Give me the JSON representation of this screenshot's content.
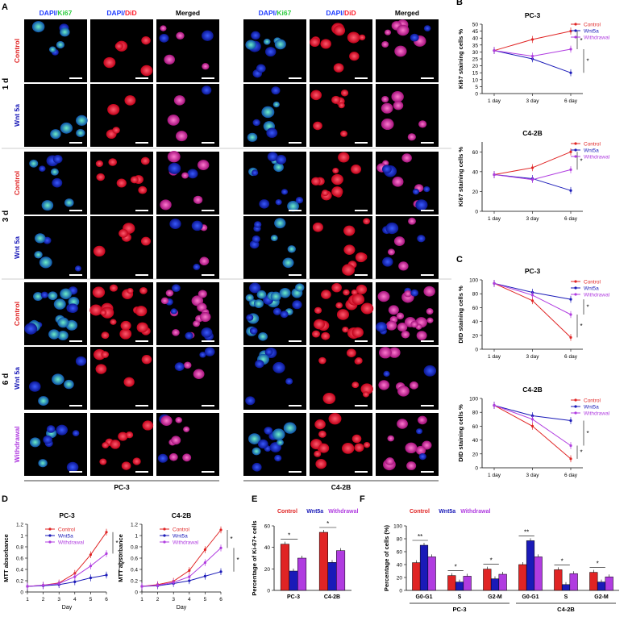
{
  "panel_letters": [
    "A",
    "B",
    "C",
    "D",
    "E",
    "F"
  ],
  "micro": {
    "col_headers": {
      "dapi": "DAPI/",
      "ki67": "Ki67",
      "did": "DiD",
      "merged": "Merged"
    },
    "row_labels": [
      "Control",
      "Wnt 5a",
      "Control",
      "Wnt 5a",
      "Control",
      "Wnt 5a",
      "Withdrawal"
    ],
    "time_labels": [
      "1 d",
      "3 d",
      "6 d"
    ],
    "cell_lines": [
      "PC-3",
      "C4-2B"
    ]
  },
  "colors": {
    "control": "#e02424",
    "wnt5a": "#1a1ab8",
    "withdrawal": "#b03ce0",
    "dapi": "#1f3cff",
    "ki67": "#2ecc40",
    "did": "#ff1a2a"
  },
  "chart_data": [
    {
      "id": "B-PC3",
      "type": "line",
      "title": "PC-3",
      "ylabel": "Ki67 staining cells %",
      "categories": [
        "1 day",
        "3 day",
        "6 day"
      ],
      "ylim": [
        0,
        50
      ],
      "yticks": [
        0,
        5,
        10,
        15,
        20,
        25,
        30,
        35,
        40,
        45,
        50
      ],
      "series": [
        {
          "name": "Control",
          "values": [
            31,
            39,
            45
          ]
        },
        {
          "name": "Wnt5a",
          "values": [
            31,
            25,
            15
          ]
        },
        {
          "name": "Withdrawal",
          "values": [
            31,
            27,
            32
          ]
        }
      ],
      "significance": [
        "*",
        "*"
      ]
    },
    {
      "id": "B-C42B",
      "type": "line",
      "title": "C4-2B",
      "ylabel": "Ki67 staining cells %",
      "categories": [
        "1 day",
        "3 day",
        "6 day"
      ],
      "ylim": [
        0,
        70
      ],
      "yticks": [
        0,
        20,
        40,
        60
      ],
      "series": [
        {
          "name": "Control",
          "values": [
            37,
            44,
            60
          ]
        },
        {
          "name": "Wnt5a",
          "values": [
            37,
            33,
            21
          ]
        },
        {
          "name": "Withdrawal",
          "values": [
            37,
            32,
            42
          ]
        }
      ],
      "significance": [
        "*"
      ]
    },
    {
      "id": "C-PC3",
      "type": "line",
      "title": "PC-3",
      "ylabel": "DID staining cells %",
      "categories": [
        "1 day",
        "3 day",
        "6 day"
      ],
      "ylim": [
        0,
        100
      ],
      "yticks": [
        0,
        20,
        40,
        60,
        80,
        100
      ],
      "series": [
        {
          "name": "Control",
          "values": [
            95,
            70,
            17
          ]
        },
        {
          "name": "Wnt5a",
          "values": [
            95,
            82,
            72
          ]
        },
        {
          "name": "Withdrawal",
          "values": [
            95,
            78,
            50
          ]
        }
      ],
      "significance": [
        "*",
        "*"
      ]
    },
    {
      "id": "C-C42B",
      "type": "line",
      "title": "C4-2B",
      "ylabel": "DID staining cells %",
      "categories": [
        "1 day",
        "3 day",
        "6 day"
      ],
      "ylim": [
        0,
        100
      ],
      "yticks": [
        0,
        20,
        40,
        60,
        80,
        100
      ],
      "series": [
        {
          "name": "Control",
          "values": [
            90,
            60,
            13
          ]
        },
        {
          "name": "Wnt5a",
          "values": [
            90,
            75,
            68
          ]
        },
        {
          "name": "Withdrawal",
          "values": [
            90,
            70,
            32
          ]
        }
      ],
      "significance": [
        "*",
        "*"
      ]
    },
    {
      "id": "D-PC3",
      "type": "line",
      "title": "PC-3",
      "ylabel": "MTT absorbance",
      "xlabel": "Day",
      "x": [
        1,
        2,
        3,
        4,
        5,
        6
      ],
      "ylim": [
        0,
        1.2
      ],
      "yticks": [
        0,
        0.2,
        0.4,
        0.6,
        0.8,
        1.0,
        1.2
      ],
      "series": [
        {
          "name": "Control",
          "values": [
            0.1,
            0.12,
            0.16,
            0.33,
            0.66,
            1.06
          ]
        },
        {
          "name": "Wnt5a",
          "values": [
            0.1,
            0.11,
            0.13,
            0.18,
            0.25,
            0.3
          ]
        },
        {
          "name": "Withdrawal",
          "values": [
            0.1,
            0.12,
            0.15,
            0.27,
            0.46,
            0.68
          ]
        }
      ],
      "significance": [
        "*",
        "*"
      ]
    },
    {
      "id": "D-C42B",
      "type": "line",
      "title": "C4-2B",
      "ylabel": "MTT absorbance",
      "xlabel": "Day",
      "x": [
        1,
        2,
        3,
        4,
        5,
        6
      ],
      "ylim": [
        0,
        1.2
      ],
      "yticks": [
        0,
        0.2,
        0.4,
        0.6,
        0.8,
        1.0,
        1.2
      ],
      "series": [
        {
          "name": "Control",
          "values": [
            0.1,
            0.13,
            0.19,
            0.38,
            0.75,
            1.1
          ]
        },
        {
          "name": "Wnt5a",
          "values": [
            0.1,
            0.11,
            0.15,
            0.2,
            0.28,
            0.36
          ]
        },
        {
          "name": "Withdrawal",
          "values": [
            0.1,
            0.12,
            0.17,
            0.27,
            0.52,
            0.78
          ]
        }
      ],
      "significance": [
        "*",
        "*"
      ]
    },
    {
      "id": "E",
      "type": "bar",
      "ylabel": "Percentage of Ki-67+ cells",
      "categories": [
        "PC-3",
        "C4-2B"
      ],
      "ylim": [
        0,
        60
      ],
      "yticks": [
        0,
        20,
        40,
        60
      ],
      "series": [
        {
          "name": "Control",
          "values": [
            43,
            54
          ]
        },
        {
          "name": "Wnt5a",
          "values": [
            18,
            26
          ]
        },
        {
          "name": "Withdrawal",
          "values": [
            30,
            37
          ]
        }
      ],
      "significance": [
        "*"
      ]
    },
    {
      "id": "F",
      "type": "bar",
      "ylabel": "Percentage of cells (%)",
      "groups": [
        "PC-3",
        "C4-2B"
      ],
      "categories": [
        "G0-G1",
        "S",
        "G2-M",
        "G0-G1",
        "S",
        "G2-M"
      ],
      "ylim": [
        0,
        100
      ],
      "yticks": [
        0,
        20,
        40,
        60,
        80,
        100
      ],
      "series": [
        {
          "name": "Control",
          "values": [
            43,
            23,
            33,
            40,
            32,
            28
          ]
        },
        {
          "name": "Wnt5a",
          "values": [
            70,
            13,
            18,
            77,
            9,
            13
          ]
        },
        {
          "name": "Withdrawal",
          "values": [
            52,
            22,
            25,
            52,
            26,
            21
          ]
        }
      ],
      "significance": [
        "*",
        "**"
      ]
    }
  ]
}
